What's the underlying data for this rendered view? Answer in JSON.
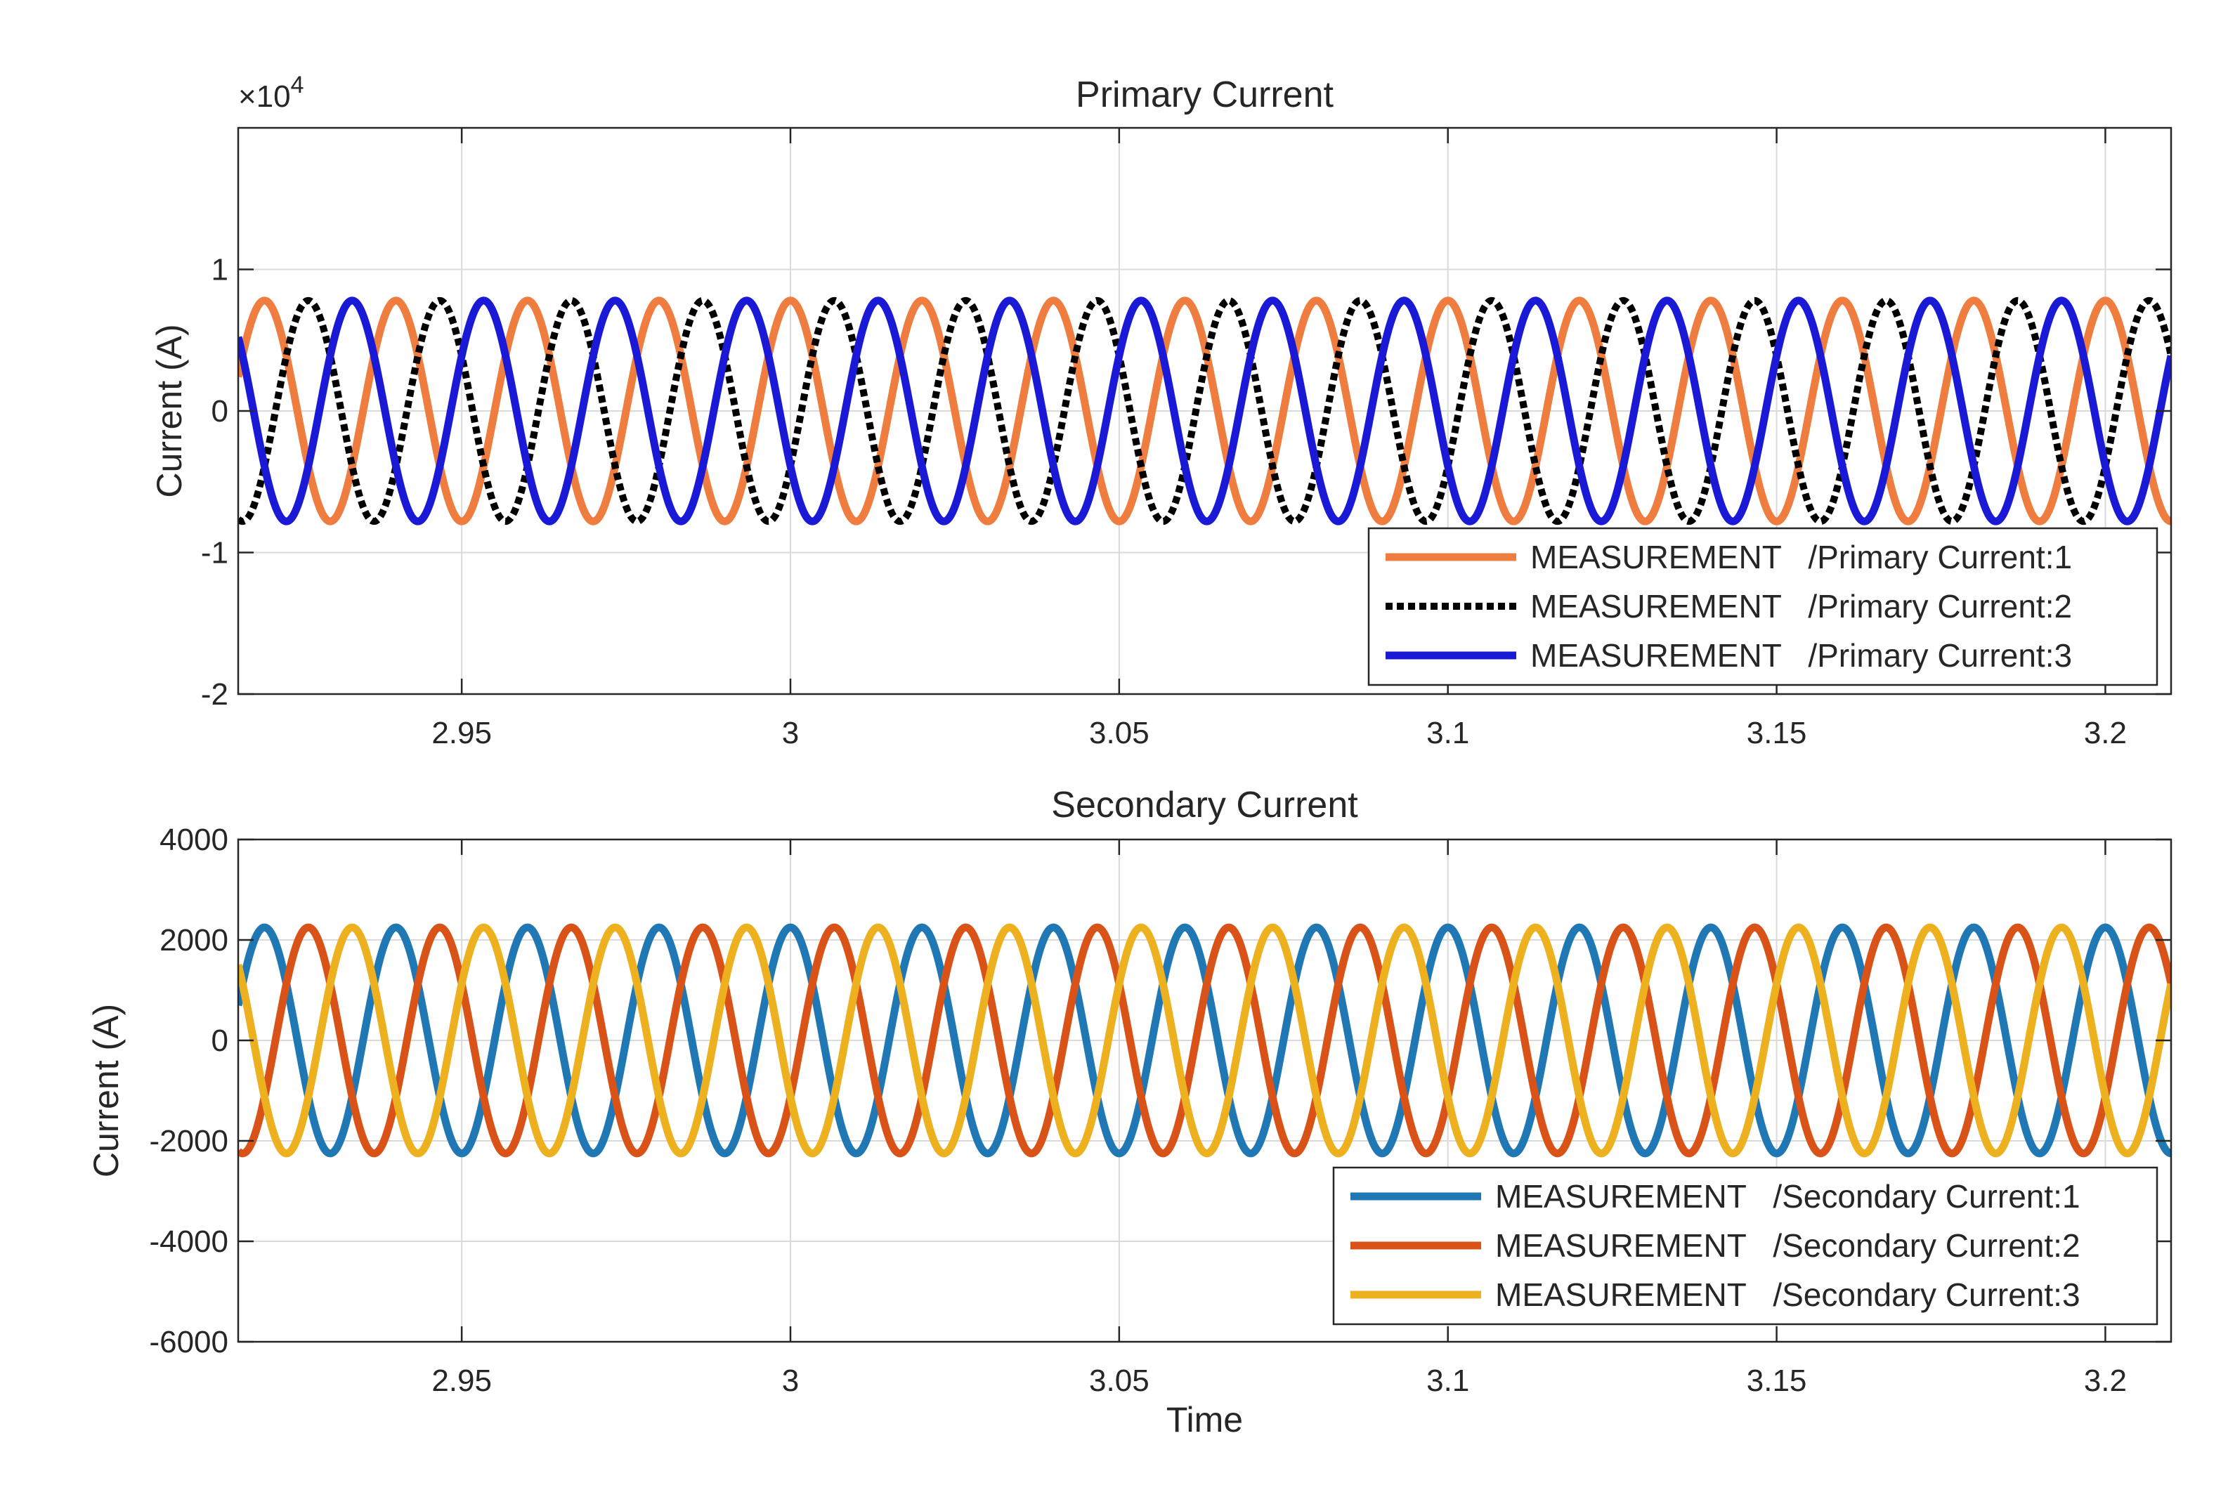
{
  "chart_data": [
    {
      "type": "line",
      "title": "Primary Current",
      "xlabel": "",
      "ylabel": "Current (A)",
      "y_exponent_label": "×10",
      "y_exponent_power": "4",
      "xlim": [
        2.916,
        3.21
      ],
      "ylim": [
        -20000,
        20000
      ],
      "x_ticks": [
        2.95,
        3.0,
        3.05,
        3.1,
        3.15,
        3.2
      ],
      "x_tick_labels": [
        "2.95",
        "3",
        "3.05",
        "3.1",
        "3.15",
        "3.2"
      ],
      "y_ticks": [
        -20000,
        -10000,
        0,
        10000
      ],
      "y_tick_labels": [
        "-2",
        "-1",
        "0",
        "1"
      ],
      "grid": true,
      "legend_position": "bottom-right",
      "series": [
        {
          "name": "MEASUREMENT   /Primary Current:1",
          "color": "#ee7d3f",
          "style": "solid",
          "amplitude": 7800,
          "frequency_hz": 50,
          "phase_deg": 90
        },
        {
          "name": "MEASUREMENT   /Primary Current:2",
          "color": "#000000",
          "style": "dotted",
          "amplitude": 7800,
          "frequency_hz": 50,
          "phase_deg": -30
        },
        {
          "name": "MEASUREMENT   /Primary Current:3",
          "color": "#1a1ad6",
          "style": "solid",
          "amplitude": 7800,
          "frequency_hz": 50,
          "phase_deg": 210
        }
      ]
    },
    {
      "type": "line",
      "title": "Secondary Current",
      "xlabel": "Time",
      "ylabel": "Current (A)",
      "xlim": [
        2.916,
        3.21
      ],
      "ylim": [
        -6000,
        4000
      ],
      "x_ticks": [
        2.95,
        3.0,
        3.05,
        3.1,
        3.15,
        3.2
      ],
      "x_tick_labels": [
        "2.95",
        "3",
        "3.05",
        "3.1",
        "3.15",
        "3.2"
      ],
      "y_ticks": [
        -6000,
        -4000,
        -2000,
        0,
        2000,
        4000
      ],
      "y_tick_labels": [
        "-6000",
        "-4000",
        "-2000",
        "0",
        "2000",
        "4000"
      ],
      "grid": true,
      "legend_position": "bottom-right",
      "series": [
        {
          "name": "MEASUREMENT   /Secondary Current:1",
          "color": "#1f77b4",
          "style": "solid",
          "amplitude": 2250,
          "frequency_hz": 50,
          "phase_deg": 90
        },
        {
          "name": "MEASUREMENT   /Secondary Current:2",
          "color": "#d95319",
          "style": "solid",
          "amplitude": 2250,
          "frequency_hz": 50,
          "phase_deg": -30
        },
        {
          "name": "MEASUREMENT   /Secondary Current:3",
          "color": "#edb120",
          "style": "solid",
          "amplitude": 2250,
          "frequency_hz": 50,
          "phase_deg": 210
        }
      ]
    }
  ]
}
